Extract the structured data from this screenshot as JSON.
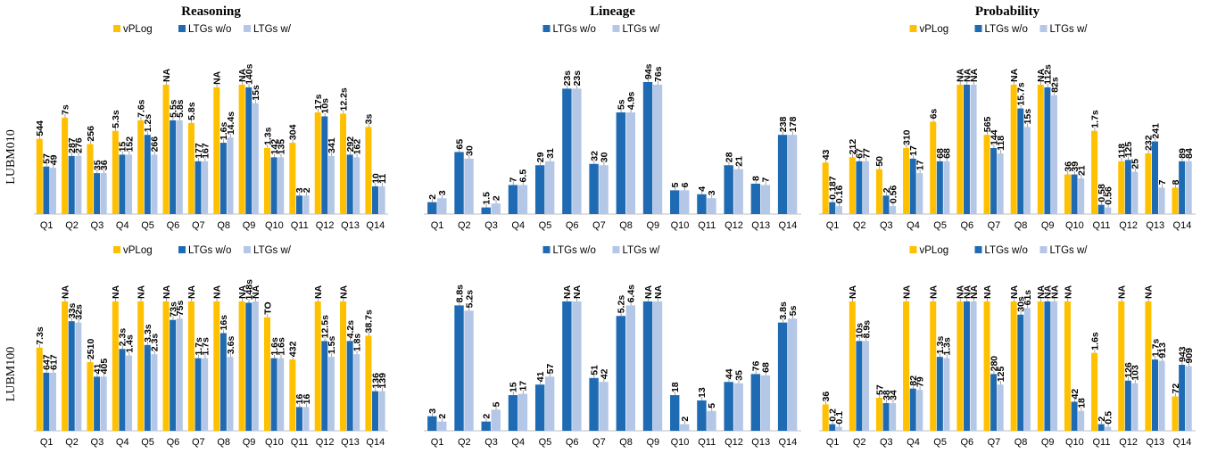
{
  "colors": {
    "vplog": "#FFC000",
    "ltg_wo": "#1F6BB3",
    "ltg_w": "#B4C7E7"
  },
  "panels": [
    {
      "row_label": "LUBM010",
      "col": 0,
      "title": "Reasoning",
      "legend": [
        "vPLog",
        "LTGs w/o",
        "LTGs w/"
      ]
    },
    {
      "row_label": "LUBM010",
      "col": 1,
      "title": "Lineage",
      "legend": [
        "LTGs w/o",
        "LTGs w/"
      ]
    },
    {
      "row_label": "LUBM010",
      "col": 2,
      "title": "Probability",
      "legend": [
        "vPLog",
        "LTGs w/o",
        "LTGs w/"
      ]
    },
    {
      "row_label": "LUBM100",
      "col": 0,
      "title": "",
      "legend": [
        "vPLog",
        "LTGs w/o",
        "LTGs w/"
      ]
    },
    {
      "row_label": "LUBM100",
      "col": 1,
      "title": "",
      "legend": [
        "LTGs w/o",
        "LTGs w/"
      ]
    },
    {
      "row_label": "LUBM100",
      "col": 2,
      "title": "",
      "legend": [
        "vPLog",
        "LTGs w/o",
        "LTGs w/"
      ]
    }
  ],
  "chart_data": [
    {
      "type": "bar",
      "title": "Reasoning",
      "row": "LUBM010",
      "categories": [
        "Q1",
        "Q2",
        "Q3",
        "Q4",
        "Q5",
        "Q6",
        "Q7",
        "Q8",
        "Q9",
        "Q10",
        "Q11",
        "Q12",
        "Q13",
        "Q14"
      ],
      "series": [
        {
          "name": "vPLog",
          "labels": [
            "544",
            "7s",
            "256",
            "5.3s",
            "7.6s",
            "NA",
            "5.8s",
            "NA",
            "NA",
            "1.3s",
            "304",
            "17s",
            "12.2s",
            "3s"
          ],
          "values": [
            0.57,
            0.73,
            0.53,
            0.63,
            0.71,
            0.98,
            0.69,
            0.96,
            0.98,
            0.5,
            0.54,
            0.77,
            0.76,
            0.66
          ]
        },
        {
          "name": "LTGs w/o",
          "labels": [
            "57",
            "287",
            "35",
            "15",
            "1.2s",
            "5.5s",
            "177",
            "1.6s",
            "140s",
            "142",
            "3",
            "10s",
            "292",
            "10"
          ],
          "values": [
            0.36,
            0.44,
            0.31,
            0.45,
            0.6,
            0.71,
            0.4,
            0.54,
            0.96,
            0.43,
            0.14,
            0.74,
            0.45,
            0.21
          ]
        },
        {
          "name": "LTGs w/",
          "labels": [
            "49",
            "276",
            "36",
            "152",
            "266",
            "5.8s",
            "167",
            "14.4s",
            "15s",
            "135",
            "2",
            "341",
            "162",
            "11"
          ],
          "values": [
            0.35,
            0.44,
            0.31,
            0.45,
            0.45,
            0.71,
            0.4,
            0.58,
            0.84,
            0.43,
            0.14,
            0.44,
            0.43,
            0.21
          ]
        }
      ]
    },
    {
      "type": "bar",
      "title": "Lineage",
      "row": "LUBM010",
      "categories": [
        "Q1",
        "Q2",
        "Q3",
        "Q4",
        "Q5",
        "Q6",
        "Q7",
        "Q8",
        "Q9",
        "Q10",
        "Q11",
        "Q12",
        "Q13",
        "Q14"
      ],
      "series": [
        {
          "name": "LTGs w/o",
          "labels": [
            "2",
            "65",
            "1.5",
            "7",
            "29",
            "23s",
            "32",
            "5s",
            "94s",
            "5",
            "4",
            "28",
            "8",
            "238"
          ],
          "values": [
            0.09,
            0.47,
            0.05,
            0.22,
            0.37,
            0.95,
            0.38,
            0.77,
            1.0,
            0.18,
            0.15,
            0.37,
            0.23,
            0.6
          ]
        },
        {
          "name": "LTGs w/",
          "labels": [
            "3",
            "30",
            "2",
            "6.5",
            "31",
            "23s",
            "30",
            "4.9s",
            "76s",
            "6",
            "3",
            "21",
            "7",
            "178"
          ],
          "values": [
            0.12,
            0.42,
            0.08,
            0.22,
            0.4,
            0.95,
            0.37,
            0.77,
            0.98,
            0.18,
            0.12,
            0.34,
            0.22,
            0.6
          ]
        }
      ]
    },
    {
      "type": "bar",
      "title": "Probability",
      "row": "LUBM010",
      "categories": [
        "Q1",
        "Q2",
        "Q3",
        "Q4",
        "Q5",
        "Q6",
        "Q7",
        "Q8",
        "Q9",
        "Q10",
        "Q11",
        "Q12",
        "Q13",
        "Q14"
      ],
      "series": [
        {
          "name": "vPLog",
          "labels": [
            "43",
            "212",
            "50",
            "310",
            "6s",
            "NA",
            "565",
            "NA",
            "NA",
            "36",
            "1.7s",
            "118",
            "232",
            "8"
          ],
          "values": [
            0.39,
            0.43,
            0.34,
            0.5,
            0.7,
            0.98,
            0.6,
            0.98,
            0.98,
            0.3,
            0.63,
            0.4,
            0.46,
            0.2
          ]
        },
        {
          "name": "LTGs w/o",
          "labels": [
            "0.187",
            "67",
            "2",
            "17",
            "68",
            "NA",
            "144",
            "15.7s",
            "112s",
            "39",
            "0.58",
            "125",
            "241",
            "89"
          ],
          "values": [
            0.09,
            0.4,
            0.14,
            0.42,
            0.4,
            0.98,
            0.5,
            0.8,
            0.96,
            0.3,
            0.07,
            0.41,
            0.55,
            0.4
          ]
        },
        {
          "name": "LTGs w/",
          "labels": [
            "0.16",
            "77",
            "0.56",
            "17",
            "68",
            "NA",
            "118",
            "15s",
            "82s",
            "21",
            "0.56",
            "25",
            "7",
            "84"
          ],
          "values": [
            0.06,
            0.4,
            0.06,
            0.31,
            0.4,
            0.98,
            0.46,
            0.66,
            0.9,
            0.27,
            0.05,
            0.32,
            0.2,
            0.4
          ]
        }
      ]
    },
    {
      "type": "bar",
      "title": "",
      "row": "LUBM100",
      "categories": [
        "Q1",
        "Q2",
        "Q3",
        "Q4",
        "Q5",
        "Q6",
        "Q7",
        "Q8",
        "Q9",
        "Q10",
        "Q11",
        "Q12",
        "Q13",
        "Q14"
      ],
      "series": [
        {
          "name": "vPLog",
          "labels": [
            "7.3s",
            "NA",
            "2510",
            "NA",
            "NA",
            "NA",
            "NA",
            "NA",
            "NA",
            "TO",
            "432",
            "NA",
            "NA",
            "38.7s"
          ],
          "values": [
            0.63,
            0.98,
            0.52,
            0.98,
            0.98,
            0.98,
            0.98,
            0.98,
            0.98,
            0.86,
            0.54,
            0.98,
            0.98,
            0.72
          ]
        },
        {
          "name": "LTGs w/o",
          "labels": [
            "647",
            "33s",
            "41",
            "2.3s",
            "3.3s",
            "73s",
            "1.7s",
            "16s",
            "148s",
            "1.6s",
            "16",
            "12.5s",
            "4.2s",
            "136"
          ],
          "values": [
            0.44,
            0.83,
            0.41,
            0.62,
            0.65,
            0.84,
            0.55,
            0.74,
            0.97,
            0.55,
            0.18,
            0.68,
            0.68,
            0.3
          ]
        },
        {
          "name": "LTGs w/",
          "labels": [
            "617",
            "32s",
            "405",
            "1.4s",
            "2.3s",
            "75s",
            "1.7s",
            "3.6s",
            "NA",
            "1.6s",
            "16",
            "1.5s",
            "1.8s",
            "139"
          ],
          "values": [
            0.44,
            0.82,
            0.41,
            0.57,
            0.58,
            0.85,
            0.55,
            0.56,
            0.98,
            0.55,
            0.18,
            0.56,
            0.58,
            0.3
          ]
        }
      ]
    },
    {
      "type": "bar",
      "title": "",
      "row": "LUBM100",
      "categories": [
        "Q1",
        "Q2",
        "Q3",
        "Q4",
        "Q5",
        "Q6",
        "Q7",
        "Q8",
        "Q9",
        "Q10",
        "Q11",
        "Q12",
        "Q13",
        "Q14"
      ],
      "series": [
        {
          "name": "LTGs w/o",
          "labels": [
            "3",
            "8.8s",
            "2",
            "15",
            "41",
            "NA",
            "51",
            "5.2s",
            "NA",
            "18",
            "13",
            "44",
            "76",
            "3.8s"
          ],
          "values": [
            0.11,
            0.95,
            0.07,
            0.27,
            0.35,
            0.98,
            0.4,
            0.87,
            0.98,
            0.27,
            0.23,
            0.37,
            0.43,
            0.82
          ]
        },
        {
          "name": "LTGs w/",
          "labels": [
            "2",
            "5.2s",
            "5",
            "17",
            "57",
            "NA",
            "42",
            "6.4s",
            "NA",
            "2",
            "5",
            "35",
            "68",
            "5s"
          ],
          "values": [
            0.07,
            0.91,
            0.16,
            0.28,
            0.41,
            0.98,
            0.37,
            0.95,
            0.98,
            0.05,
            0.15,
            0.36,
            0.42,
            0.85
          ]
        }
      ]
    },
    {
      "type": "bar",
      "title": "",
      "row": "LUBM100",
      "categories": [
        "Q1",
        "Q2",
        "Q3",
        "Q4",
        "Q5",
        "Q6",
        "Q7",
        "Q8",
        "Q9",
        "Q10",
        "Q11",
        "Q12",
        "Q13",
        "Q14"
      ],
      "series": [
        {
          "name": "vPLog",
          "labels": [
            "36",
            "NA",
            "57",
            "NA",
            "NA",
            "NA",
            "NA",
            "NA",
            "NA",
            "NA",
            "1.6s",
            "NA",
            "NA",
            "72"
          ],
          "values": [
            0.2,
            0.98,
            0.25,
            0.98,
            0.98,
            0.98,
            0.98,
            0.98,
            0.98,
            0.98,
            0.59,
            0.98,
            0.98,
            0.26
          ]
        },
        {
          "name": "LTGs w/o",
          "labels": [
            "0.2",
            "10s",
            "38",
            "82",
            "1.3s",
            "NA",
            "280",
            "30s",
            "NA",
            "42",
            "2",
            "126",
            "1.7s",
            "943"
          ],
          "values": [
            0.05,
            0.68,
            0.21,
            0.32,
            0.56,
            0.98,
            0.43,
            0.88,
            0.98,
            0.22,
            0.05,
            0.38,
            0.54,
            0.5
          ]
        },
        {
          "name": "LTGs w/",
          "labels": [
            "0.1",
            "8.9s",
            "34",
            "79",
            "1.3s",
            "NA",
            "125",
            "61s",
            "NA",
            "18",
            "0.5",
            "103",
            "913",
            "909"
          ],
          "values": [
            0.03,
            0.68,
            0.21,
            0.31,
            0.55,
            0.98,
            0.35,
            0.93,
            0.98,
            0.15,
            0.03,
            0.36,
            0.53,
            0.49
          ]
        }
      ]
    }
  ]
}
